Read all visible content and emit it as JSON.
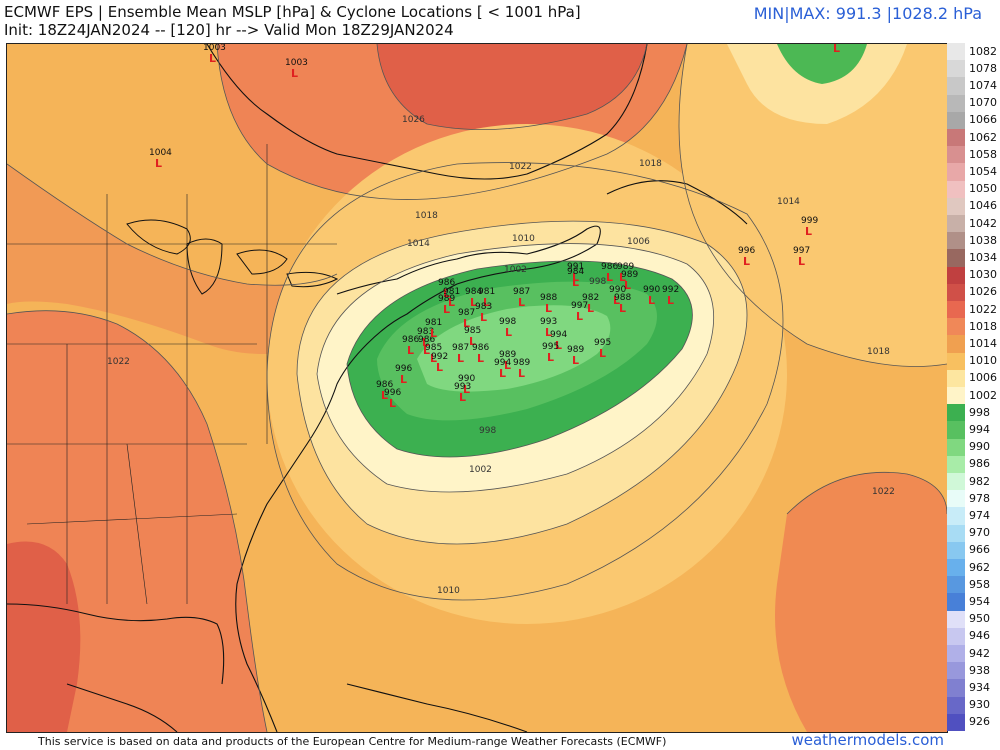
{
  "header": {
    "line1": "ECMWF EPS | Ensemble Mean MSLP [hPa] & Cyclone Locations [ < 1001 hPa]",
    "line2": "Init: 18Z24JAN2024 -- [120] hr --> Valid Mon 18Z29JAN2024",
    "minmax": "MIN|MAX: 991.3 |1028.2 hPa"
  },
  "footer": {
    "credit": "This service is based on data and products of the European Centre for Medium-range Weather Forecasts (ECMWF)",
    "brand": "weathermodels.com"
  },
  "colorbar": {
    "ticks": [
      "1082",
      "1078",
      "1074",
      "1070",
      "1066",
      "1062",
      "1058",
      "1054",
      "1050",
      "1046",
      "1042",
      "1038",
      "1034",
      "1030",
      "1026",
      "1022",
      "1018",
      "1014",
      "1010",
      "1006",
      "1002",
      "998",
      "994",
      "990",
      "986",
      "982",
      "978",
      "974",
      "970",
      "966",
      "962",
      "958",
      "954",
      "950",
      "946",
      "942",
      "938",
      "934",
      "930",
      "926"
    ],
    "colors": [
      "#e8e8e8",
      "#d8d8d8",
      "#c8c8c8",
      "#b8b8b8",
      "#a8a8a8",
      "#c87878",
      "#d89090",
      "#e8a8a8",
      "#f0c0c0",
      "#e0c8c0",
      "#c8b0a8",
      "#b09088",
      "#986860",
      "#c04040",
      "#d05048",
      "#e86850",
      "#f08858",
      "#f0a050",
      "#f8c060",
      "#fde6a0",
      "#fff4c8",
      "#3cb050",
      "#58c060",
      "#80d880",
      "#a8eca8",
      "#d0f8d8",
      "#e8fcf8",
      "#c8ecf8",
      "#a8dcf4",
      "#88c8f0",
      "#68b0ec",
      "#5898e0",
      "#4880d8",
      "#e0e0f8",
      "#c8c8f0",
      "#b0b0e8",
      "#9898dc",
      "#8080d0",
      "#6868c8",
      "#5050c0"
    ]
  },
  "map": {
    "contour_labels": [
      {
        "text": "1026"
      },
      {
        "text": "1022"
      },
      {
        "text": "1018"
      },
      {
        "text": "1014"
      },
      {
        "text": "1010"
      },
      {
        "text": "1006"
      },
      {
        "text": "1002"
      },
      {
        "text": "998"
      },
      {
        "text": "998"
      },
      {
        "text": "1002"
      },
      {
        "text": "1010"
      },
      {
        "text": "1014"
      },
      {
        "text": "1018"
      },
      {
        "text": "1018"
      },
      {
        "text": "1022"
      },
      {
        "text": "1022"
      }
    ],
    "cyclones": [
      {
        "value": "1003"
      },
      {
        "value": "1003"
      },
      {
        "value": "1004"
      },
      {
        "value": "985"
      },
      {
        "value": "999"
      },
      {
        "value": "996"
      },
      {
        "value": "997"
      },
      {
        "value": "986"
      },
      {
        "value": "981"
      },
      {
        "value": "984"
      },
      {
        "value": "981"
      },
      {
        "value": "987"
      },
      {
        "value": "988"
      },
      {
        "value": "991"
      },
      {
        "value": "984"
      },
      {
        "value": "986"
      },
      {
        "value": "989"
      },
      {
        "value": "989"
      },
      {
        "value": "990"
      },
      {
        "value": "990"
      },
      {
        "value": "992"
      },
      {
        "value": "988"
      },
      {
        "value": "982"
      },
      {
        "value": "997"
      },
      {
        "value": "989"
      },
      {
        "value": "983"
      },
      {
        "value": "987"
      },
      {
        "value": "985"
      },
      {
        "value": "998"
      },
      {
        "value": "993"
      },
      {
        "value": "994"
      },
      {
        "value": "983"
      },
      {
        "value": "986"
      },
      {
        "value": "986"
      },
      {
        "value": "985"
      },
      {
        "value": "987"
      },
      {
        "value": "986"
      },
      {
        "value": "992"
      },
      {
        "value": "995"
      },
      {
        "value": "989"
      },
      {
        "value": "994"
      },
      {
        "value": "989"
      },
      {
        "value": "990"
      },
      {
        "value": "993"
      },
      {
        "value": "986"
      },
      {
        "value": "996"
      },
      {
        "value": "981"
      },
      {
        "value": "989"
      },
      {
        "value": "995"
      },
      {
        "value": "996"
      }
    ]
  }
}
